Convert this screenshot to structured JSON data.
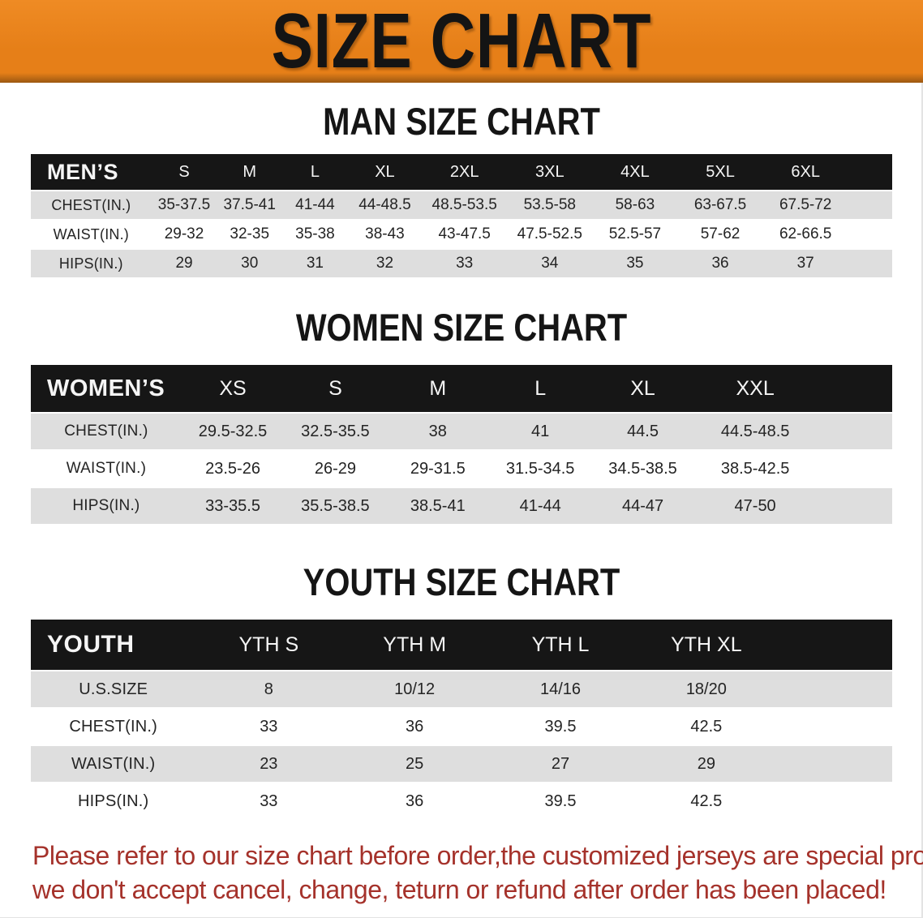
{
  "banner": {
    "title": "SIZE CHART"
  },
  "sections": [
    {
      "title": "MAN SIZE CHART",
      "header_label": "MEN’S",
      "columns": [
        "S",
        "M",
        "L",
        "XL",
        "2XL",
        "3XL",
        "4XL",
        "5XL",
        "6XL"
      ],
      "rows": [
        {
          "label": "CHEST(IN.)",
          "values": [
            "35-37.5",
            "37.5-41",
            "41-44",
            "44-48.5",
            "48.5-53.5",
            "53.5-58",
            "58-63",
            "63-67.5",
            "67.5-72"
          ]
        },
        {
          "label": "WAIST(IN.)",
          "values": [
            "29-32",
            "32-35",
            "35-38",
            "38-43",
            "43-47.5",
            "47.5-52.5",
            "52.5-57",
            "57-62",
            "62-66.5"
          ]
        },
        {
          "label": "HIPS(IN.)",
          "values": [
            "29",
            "30",
            "31",
            "32",
            "33",
            "34",
            "35",
            "36",
            "37"
          ]
        }
      ]
    },
    {
      "title": "WOMEN SIZE CHART",
      "header_label": "WOMEN’S",
      "columns": [
        "XS",
        "S",
        "M",
        "L",
        "XL",
        "XXL"
      ],
      "rows": [
        {
          "label": "CHEST(IN.)",
          "values": [
            "29.5-32.5",
            "32.5-35.5",
            "38",
            "41",
            "44.5",
            "44.5-48.5"
          ]
        },
        {
          "label": "WAIST(IN.)",
          "values": [
            "23.5-26",
            "26-29",
            "29-31.5",
            "31.5-34.5",
            "34.5-38.5",
            "38.5-42.5"
          ]
        },
        {
          "label": "HIPS(IN.)",
          "values": [
            "33-35.5",
            "35.5-38.5",
            "38.5-41",
            "41-44",
            "44-47",
            "47-50"
          ]
        }
      ]
    },
    {
      "title": "YOUTH SIZE CHART",
      "header_label": "YOUTH",
      "columns": [
        "YTH S",
        "YTH M",
        "YTH L",
        "YTH XL"
      ],
      "rows": [
        {
          "label": "U.S.SIZE",
          "values": [
            "8",
            "10/12",
            "14/16",
            "18/20"
          ]
        },
        {
          "label": "CHEST(IN.)",
          "values": [
            "33",
            "36",
            "39.5",
            "42.5"
          ]
        },
        {
          "label": "WAIST(IN.)",
          "values": [
            "23",
            "25",
            "27",
            "29"
          ]
        },
        {
          "label": "HIPS(IN.)",
          "values": [
            "33",
            "36",
            "39.5",
            "42.5"
          ]
        }
      ]
    }
  ],
  "footnote": {
    "line1": "Please refer to our size chart before order,the customized jerseys are special products,",
    "line2": "we don't accept cancel, change, teturn or refund after order has been placed!"
  },
  "colors": {
    "banner_orange": "#E67F18",
    "banner_orange_highlight": "#EF8B24",
    "banner_orange_shadow": "#9C5812",
    "table_header_black": "#161616",
    "row_gray": "#DEDEDE",
    "footnote_red": "#A5322B"
  }
}
